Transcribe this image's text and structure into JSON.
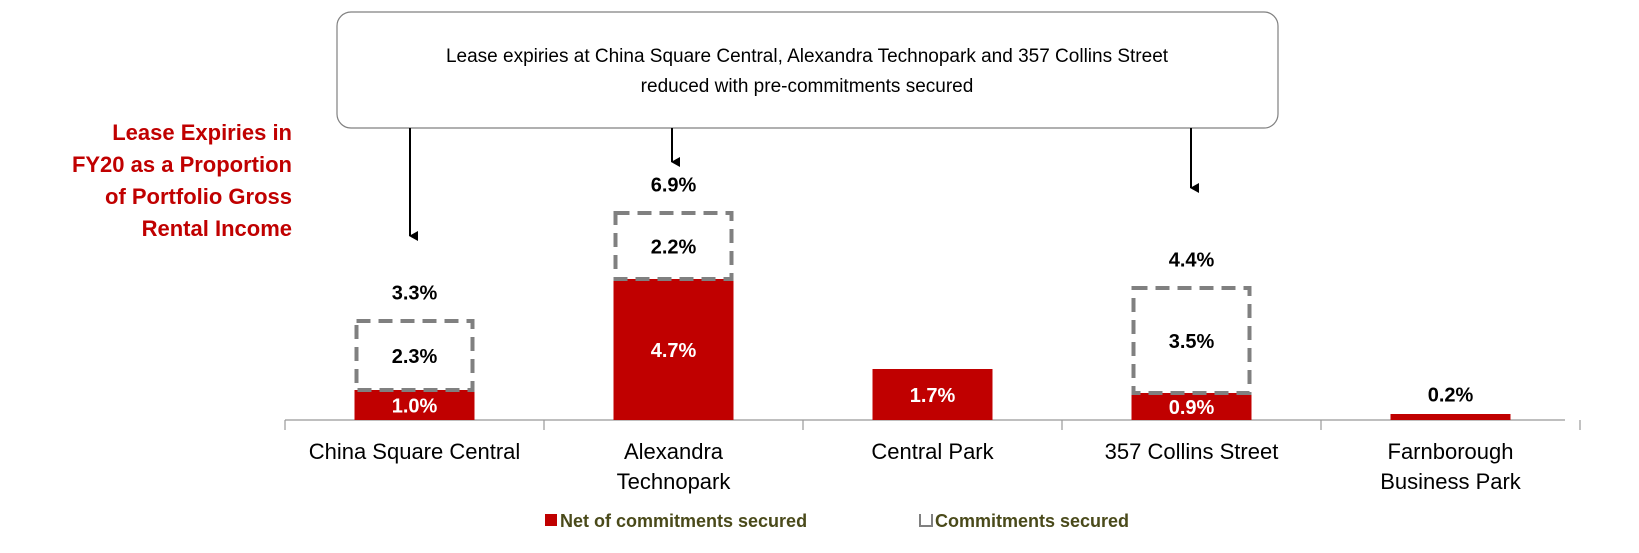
{
  "chart_data": {
    "type": "bar",
    "title": [
      "Lease Expiries in",
      "FY20 as a Proportion",
      "of Portfolio Gross",
      "Rental Income"
    ],
    "annotation": [
      "Lease expiries at China Square Central, Alexandra Technopark and 357 Collins Street",
      "reduced with pre-commitments secured"
    ],
    "categories": [
      [
        "China Square Central"
      ],
      [
        "Alexandra",
        "Technopark"
      ],
      [
        "Central Park"
      ],
      [
        "357 Collins Street"
      ],
      [
        "Farnborough",
        "Business Park"
      ]
    ],
    "series": [
      {
        "name": "Net of commitments secured",
        "color": "#c00000",
        "style": "solid",
        "values": [
          1.0,
          4.7,
          1.7,
          0.9,
          0.2
        ],
        "value_labels": [
          "1.0%",
          "4.7%",
          "1.7%",
          "0.9%",
          "0.2%"
        ]
      },
      {
        "name": "Commitments secured",
        "color": "#808080",
        "style": "dashed",
        "values": [
          2.3,
          2.2,
          null,
          3.5,
          null
        ],
        "value_labels": [
          "2.3%",
          "2.2%",
          null,
          "3.5%",
          null
        ]
      }
    ],
    "totals": [
      3.3,
      6.9,
      null,
      4.4,
      null
    ],
    "total_labels": [
      "3.3%",
      "6.9%",
      null,
      "4.4%",
      null
    ],
    "legend_color": "#4a4a1a"
  }
}
